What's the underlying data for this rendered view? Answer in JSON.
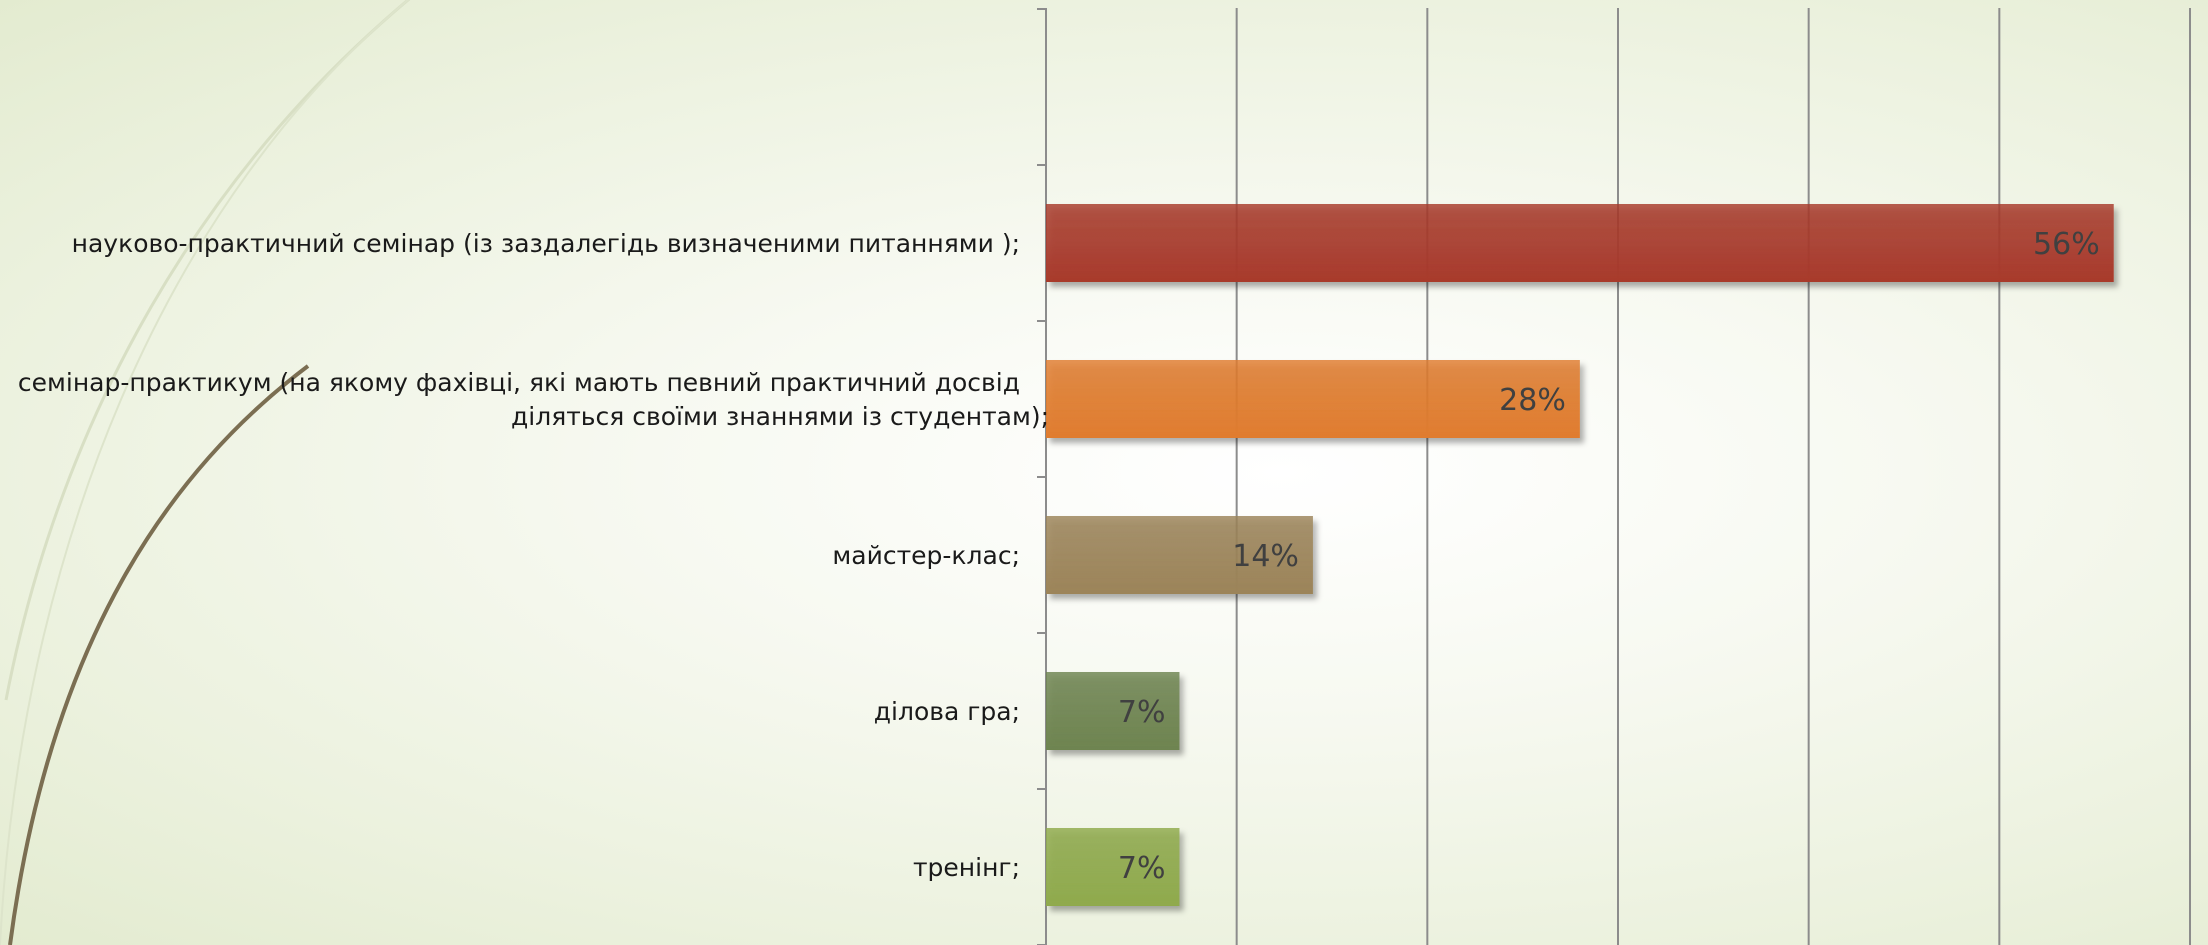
{
  "chart_data": {
    "type": "bar",
    "orientation": "horizontal",
    "categories": [
      "тренінг;",
      "ділова гра;",
      "майстер-клас;",
      "семінар-практикум (на якому фахівці, які мають певний практичний досвід діляться своїми знаннями із студентам);",
      "науково-практичний семінар (із заздалегідь визначеними питаннями );"
    ],
    "values": [
      7,
      7,
      14,
      28,
      56
    ],
    "value_labels": [
      "7%",
      "7%",
      "14%",
      "28%",
      "56%"
    ],
    "xlim": [
      0,
      60
    ],
    "x_gridlines": [
      10,
      20,
      30,
      40,
      50,
      60
    ],
    "grid": true,
    "legend": "none",
    "colors": [
      "#8faa4c",
      "#6e8450",
      "#9c8459",
      "#e07c2e",
      "#a83a2b"
    ]
  }
}
